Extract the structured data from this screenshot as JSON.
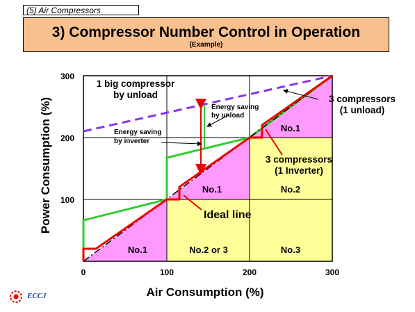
{
  "header": {
    "section": "(5) Air Compressors",
    "title": "3) Compressor Number Control in Operation",
    "subtitle": "(Example)"
  },
  "axes": {
    "x_label": "Air Consumption (%)",
    "y_label": "Power Consumption (%)",
    "x_ticks": [
      "0",
      "100",
      "200",
      "300"
    ],
    "y_ticks": [
      "100",
      "200",
      "300"
    ]
  },
  "regions": {
    "no1_low": "No.1",
    "no23_low": "No.2 or 3",
    "no3_low": "No.3",
    "no1_mid": "No.1",
    "no2_mid": "No.2",
    "no1_top": "No.1"
  },
  "annotations": {
    "big_compressor_line1": "1 big compressor",
    "big_compressor_line2": "by unload",
    "unload_line1": "3 compressors",
    "unload_line2": "(1 unload)",
    "inverter_line1": "3 compressors",
    "inverter_line2": "(1 Inverter)",
    "saving_unload_line1": "Energy saving",
    "saving_unload_line2": "by unload",
    "saving_inverter_line1": "Energy saving",
    "saving_inverter_line2": "by inverter",
    "ideal_line": "Ideal line"
  },
  "colors": {
    "magenta_fill": "#ff99ff",
    "yellow_fill": "#ffff99",
    "green_line": "#33cc33",
    "red_line": "#ee0000",
    "purple_dash": "#8833ee",
    "title_bg": "#f9c08f",
    "logo_blue": "#1a3fa0"
  },
  "logo": {
    "text": "ECCJ"
  }
}
